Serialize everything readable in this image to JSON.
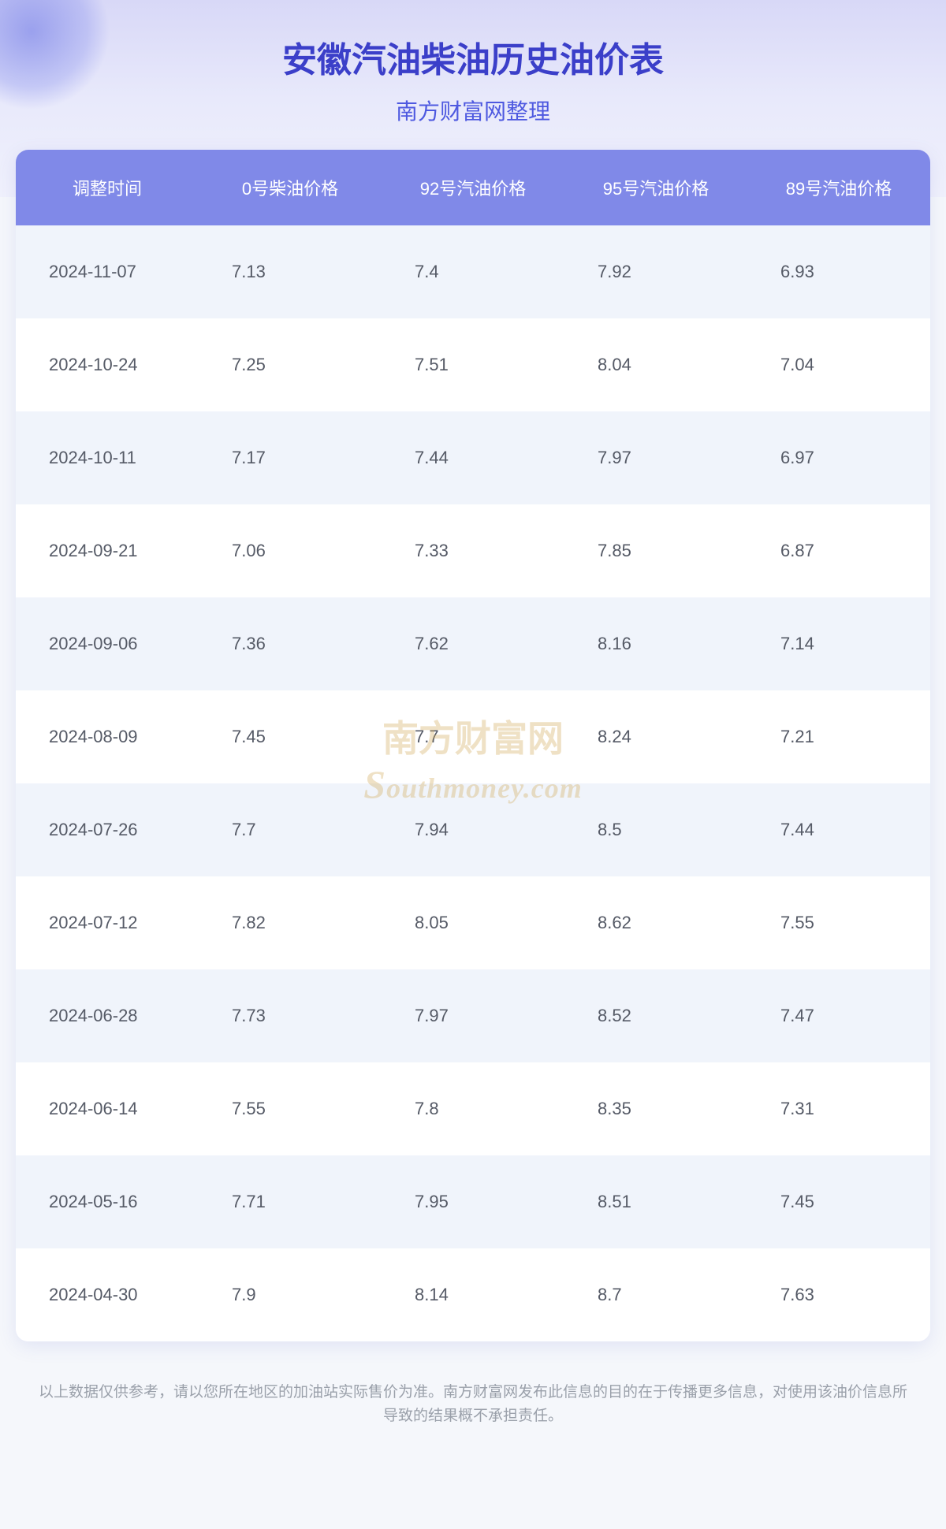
{
  "header": {
    "title": "安徽汽油柴油历史油价表",
    "subtitle": "南方财富网整理"
  },
  "watermark": {
    "line1": "南方财富网",
    "line2": "outhmoney.com"
  },
  "table": {
    "type": "table",
    "columns": [
      "调整时间",
      "0号柴油价格",
      "92号汽油价格",
      "95号汽油价格",
      "89号汽油价格"
    ],
    "header_bg_color": "#8089e8",
    "header_text_color": "#ffffff",
    "row_odd_bg": "#f0f4fb",
    "row_even_bg": "#ffffff",
    "cell_text_color": "#555a66",
    "rows": [
      [
        "2024-11-07",
        "7.13",
        "7.4",
        "7.92",
        "6.93"
      ],
      [
        "2024-10-24",
        "7.25",
        "7.51",
        "8.04",
        "7.04"
      ],
      [
        "2024-10-11",
        "7.17",
        "7.44",
        "7.97",
        "6.97"
      ],
      [
        "2024-09-21",
        "7.06",
        "7.33",
        "7.85",
        "6.87"
      ],
      [
        "2024-09-06",
        "7.36",
        "7.62",
        "8.16",
        "7.14"
      ],
      [
        "2024-08-09",
        "7.45",
        "7.7",
        "8.24",
        "7.21"
      ],
      [
        "2024-07-26",
        "7.7",
        "7.94",
        "8.5",
        "7.44"
      ],
      [
        "2024-07-12",
        "7.82",
        "8.05",
        "8.62",
        "7.55"
      ],
      [
        "2024-06-28",
        "7.73",
        "7.97",
        "8.52",
        "7.47"
      ],
      [
        "2024-06-14",
        "7.55",
        "7.8",
        "8.35",
        "7.31"
      ],
      [
        "2024-05-16",
        "7.71",
        "7.95",
        "8.51",
        "7.45"
      ],
      [
        "2024-04-30",
        "7.9",
        "8.14",
        "8.7",
        "7.63"
      ]
    ]
  },
  "footer": {
    "text": "以上数据仅供参考，请以您所在地区的加油站实际售价为准。南方财富网发布此信息的目的在于传播更多信息，对使用该油价信息所导致的结果概不承担责任。"
  },
  "colors": {
    "title_color": "#3b3fc9",
    "subtitle_color": "#4e59e0",
    "page_bg": "#f5f7fb",
    "header_gradient_top": "#d8d8f7",
    "header_gradient_bottom": "#f0f1fc",
    "footer_text": "#9aa0aa"
  },
  "typography": {
    "title_fontsize": 44,
    "subtitle_fontsize": 28,
    "header_cell_fontsize": 22,
    "body_cell_fontsize": 22,
    "footer_fontsize": 19
  }
}
